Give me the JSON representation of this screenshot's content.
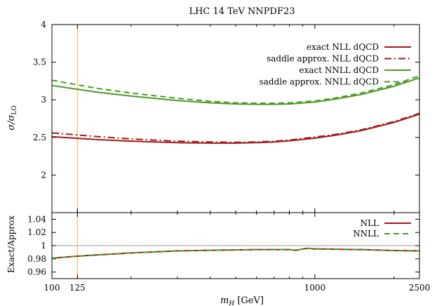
{
  "chart_data": [
    {
      "type": "line",
      "title": "LHC 14 TeV NNPDF23",
      "ylabel": "σ/σLO",
      "ylabel_main": "σ/σ",
      "ylabel_sub": "LO",
      "xscale": "log",
      "xlim": [
        100,
        2500
      ],
      "ylim": [
        1.5,
        4
      ],
      "ytick_labels": [
        "2",
        "2.5",
        "3",
        "3.5",
        "4"
      ],
      "yticks": [
        2,
        2.5,
        3,
        3.5,
        4
      ],
      "vertical_marker": 125,
      "vertical_marker_color": "#f7c77f",
      "legend_position": "top-right",
      "series": [
        {
          "name": "exact NLL dQCD",
          "color": "#a31a1a",
          "dash": "solid",
          "x": [
            100,
            150,
            200,
            300,
            400,
            500,
            600,
            700,
            800,
            1000,
            1200,
            1500,
            2000,
            2500
          ],
          "y": [
            2.51,
            2.47,
            2.45,
            2.43,
            2.425,
            2.425,
            2.43,
            2.44,
            2.455,
            2.49,
            2.53,
            2.59,
            2.7,
            2.81
          ]
        },
        {
          "name": "saddle approx. NLL dQCD",
          "color": "#a31a1a",
          "dash": "dashdot",
          "x": [
            100,
            150,
            200,
            300,
            400,
            500,
            600,
            700,
            800,
            1000,
            1200,
            1500,
            2000,
            2500
          ],
          "y": [
            2.56,
            2.51,
            2.48,
            2.45,
            2.44,
            2.435,
            2.44,
            2.45,
            2.465,
            2.505,
            2.54,
            2.6,
            2.71,
            2.82
          ]
        },
        {
          "name": "exact NNLL dQCD",
          "color": "#4f9a26",
          "dash": "solid",
          "x": [
            100,
            150,
            200,
            300,
            400,
            500,
            600,
            700,
            800,
            1000,
            1200,
            1500,
            2000,
            2500
          ],
          "y": [
            3.19,
            3.1,
            3.05,
            2.99,
            2.96,
            2.945,
            2.94,
            2.94,
            2.945,
            2.97,
            3.01,
            3.07,
            3.18,
            3.29
          ]
        },
        {
          "name": "saddle approx. NNLL dQCD",
          "color": "#4f9a26",
          "dash": "dashed",
          "x": [
            100,
            150,
            200,
            300,
            400,
            500,
            600,
            700,
            800,
            1000,
            1200,
            1500,
            2000,
            2500
          ],
          "y": [
            3.26,
            3.15,
            3.09,
            3.02,
            2.98,
            2.96,
            2.955,
            2.955,
            2.96,
            2.985,
            3.025,
            3.09,
            3.2,
            3.32
          ]
        }
      ]
    },
    {
      "type": "line",
      "ylabel": "Exact/Approx",
      "xlabel": "mH [GeV]",
      "xlabel_main": "m",
      "xlabel_sub": "H",
      "xlabel_unit": " [GeV]",
      "xscale": "log",
      "xlim": [
        100,
        2500
      ],
      "ylim": [
        0.95,
        1.05
      ],
      "ytick_labels": [
        "0.96",
        "0.98",
        "1",
        "1.02",
        "1.04"
      ],
      "yticks": [
        0.96,
        0.98,
        1.0,
        1.02,
        1.04
      ],
      "xtick_labels": [
        "100",
        "125",
        "1000",
        "2500"
      ],
      "xticks": [
        100,
        125,
        1000,
        2500
      ],
      "reference_line": 1,
      "reference_line_color": "#999999",
      "vertical_marker": 125,
      "vertical_marker_color": "#f7c77f",
      "legend_position": "top-right",
      "series": [
        {
          "name": "NLL",
          "color": "#a31a1a",
          "dash": "solid",
          "x": [
            100,
            125,
            150,
            200,
            300,
            400,
            500,
            600,
            700,
            800,
            850,
            900,
            950,
            1000,
            1100,
            1200,
            1500,
            2000,
            2500
          ],
          "y": [
            0.981,
            0.984,
            0.986,
            0.989,
            0.992,
            0.993,
            0.9935,
            0.994,
            0.994,
            0.994,
            0.993,
            0.995,
            0.996,
            0.995,
            0.995,
            0.9945,
            0.994,
            0.9925,
            0.992
          ]
        },
        {
          "name": "NNLL",
          "color": "#4f9a26",
          "dash": "dashed",
          "x": [
            100,
            125,
            150,
            200,
            300,
            400,
            500,
            600,
            700,
            800,
            850,
            900,
            950,
            1000,
            1100,
            1200,
            1500,
            2000,
            2500
          ],
          "y": [
            0.981,
            0.984,
            0.986,
            0.989,
            0.992,
            0.993,
            0.9935,
            0.994,
            0.994,
            0.994,
            0.993,
            0.995,
            0.996,
            0.995,
            0.995,
            0.9945,
            0.994,
            0.9925,
            0.992
          ]
        }
      ]
    }
  ]
}
